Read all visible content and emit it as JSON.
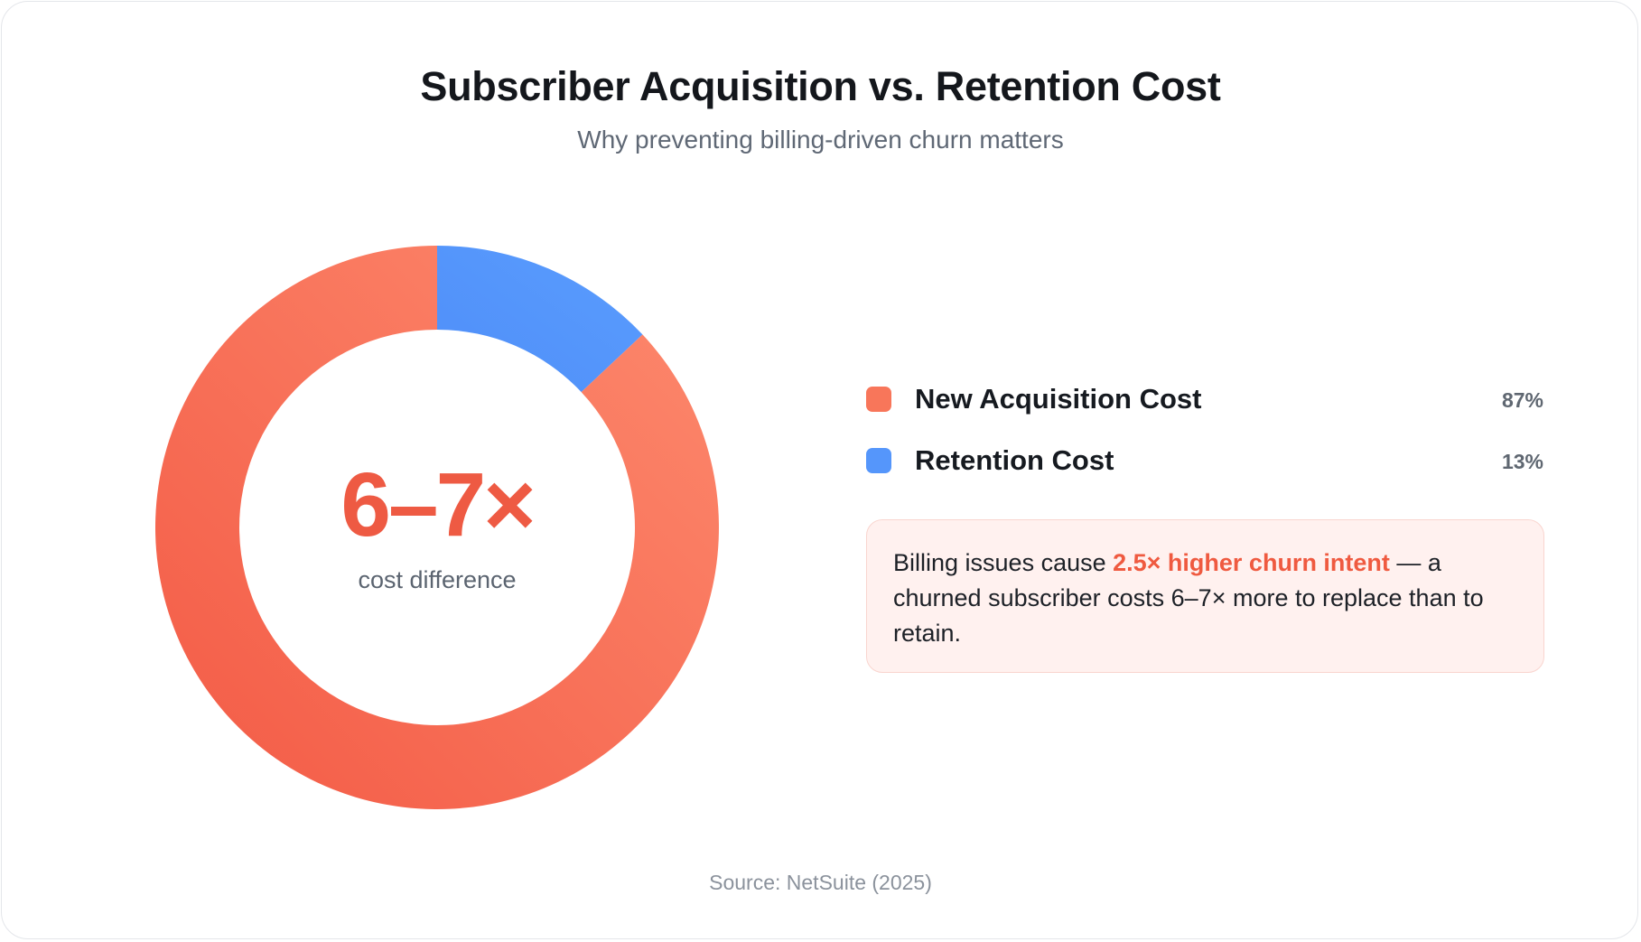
{
  "chart_data": {
    "type": "pie",
    "title": "Subscriber Acquisition vs. Retention Cost",
    "subtitle": "Why preventing billing-driven churn matters",
    "donut": true,
    "center_value": "6–7×",
    "center_label": "cost difference",
    "slices": [
      {
        "label": "New Acquisition Cost",
        "value": 87,
        "value_label": "87%",
        "color": "#f8765a"
      },
      {
        "label": "Retention Cost",
        "value": 13,
        "value_label": "13%",
        "color": "#5596fb"
      }
    ],
    "legend_position": "right",
    "source": "Source: NetSuite (2025)"
  },
  "note": {
    "prefix": "Billing issues cause ",
    "highlight": "2.5× higher churn intent",
    "suffix": " — a churned subscriber costs 6–7× more to replace than to retain."
  }
}
